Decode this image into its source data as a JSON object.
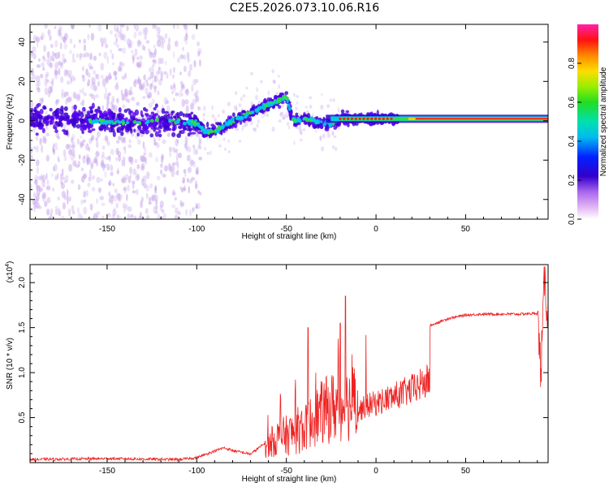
{
  "title": "C2E5.2026.073.10.06.R16",
  "colors": {
    "snr_line": "#ee2222",
    "dot_low": "#c8a8ec",
    "dot_mid": "#4400dd",
    "dot_cyan": "#00c8e8",
    "dot_green": "#33dd44",
    "dot_red": "#ff2010"
  },
  "chart_data": [
    {
      "type": "heatmap",
      "title": "Spectrogram",
      "xlabel": "Height of straight line (km)",
      "ylabel": "Frequency (Hz)",
      "xlim": [
        -193,
        96
      ],
      "ylim": [
        -50,
        49
      ],
      "xticks": [
        -150,
        -100,
        -50,
        0,
        50
      ],
      "xtick_labels": [
        "-150",
        "-100",
        "-50",
        "0",
        "50"
      ],
      "yticks": [
        -40,
        -20,
        0,
        20,
        40
      ],
      "ytick_labels": [
        "-40",
        "-20",
        "0",
        "20",
        "40"
      ],
      "ridge": {
        "height_km": [
          -193,
          -160,
          -140,
          -120,
          -100,
          -95,
          -90,
          -85,
          -80,
          -75,
          -70,
          -65,
          -60,
          -55,
          -50,
          -47,
          -45,
          -40,
          -35,
          -30,
          -25,
          -20,
          -15,
          -10,
          0,
          20,
          50,
          96
        ],
        "frequency_hz": [
          1,
          0,
          -1,
          0,
          -1,
          -6,
          -5,
          -3,
          0,
          2,
          4,
          6,
          8,
          10,
          12,
          2,
          0,
          1,
          0,
          -1,
          -2,
          1,
          1,
          1,
          1,
          1,
          1,
          1
        ]
      },
      "colorbar": {
        "label": "Normalized spectral amplitude",
        "range": [
          0,
          1
        ],
        "ticks": [
          0.0,
          0.2,
          0.4,
          0.6,
          0.8
        ],
        "tick_labels": [
          "0.0",
          "0.2",
          "0.4",
          "0.6",
          "0.8"
        ]
      }
    },
    {
      "type": "line",
      "title": "SNR",
      "xlabel": "Height of straight line (km)",
      "ylabel": "SNR (10 * v/v)",
      "scale_label": "(x10",
      "scale_exponent": "4",
      "xlim": [
        -193,
        96
      ],
      "ylim": [
        0,
        2.2
      ],
      "xticks": [
        -150,
        -100,
        -50,
        0,
        50
      ],
      "xtick_labels": [
        "-150",
        "-100",
        "-50",
        "0",
        "50"
      ],
      "yticks": [
        0.5,
        1.0,
        1.5,
        2.0
      ],
      "ytick_labels": [
        "0.5",
        "1.0",
        "1.5",
        "2.0"
      ],
      "envelope": {
        "height_km": [
          -193,
          -150,
          -110,
          -100,
          -92,
          -85,
          -80,
          -70,
          -62,
          -55,
          -48,
          -40,
          -35,
          -30,
          -25,
          -20,
          -15,
          -10,
          -5,
          0,
          10,
          20,
          30,
          40,
          50,
          60,
          70,
          80,
          90,
          92,
          94,
          96
        ],
        "snr": [
          0.02,
          0.03,
          0.02,
          0.04,
          0.1,
          0.15,
          0.12,
          0.08,
          0.2,
          0.35,
          0.4,
          0.5,
          0.65,
          0.75,
          0.82,
          0.85,
          0.88,
          0.95,
          1.05,
          1.1,
          1.22,
          1.35,
          1.52,
          1.6,
          1.64,
          1.65,
          1.65,
          1.65,
          1.66,
          1.0,
          2.05,
          1.62
        ]
      },
      "annotations": [
        {
          "height_km": -38,
          "snr": 1.5,
          "note": "spike"
        },
        {
          "height_km": -17,
          "snr": 1.85,
          "note": "spike"
        },
        {
          "height_km": -20,
          "snr": 1.55,
          "note": "spike"
        }
      ]
    }
  ]
}
